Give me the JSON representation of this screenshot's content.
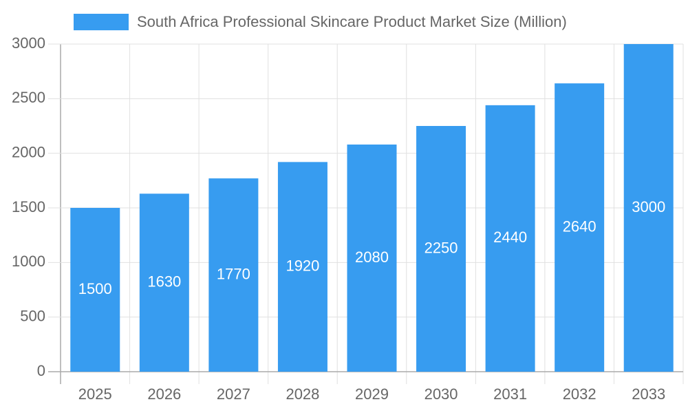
{
  "chart_data": {
    "type": "bar",
    "series": [
      {
        "name": "South Africa Professional Skincare Product Market Size (Million)",
        "color": "#379cf0",
        "values": [
          1500,
          1630,
          1770,
          1920,
          2080,
          2250,
          2440,
          2640,
          3000
        ]
      }
    ],
    "categories": [
      "2025",
      "2026",
      "2027",
      "2028",
      "2029",
      "2030",
      "2031",
      "2032",
      "2033"
    ],
    "ylim": [
      0,
      3000
    ],
    "yticks": [
      0,
      500,
      1000,
      1500,
      2000,
      2500,
      3000
    ],
    "grid": true
  }
}
